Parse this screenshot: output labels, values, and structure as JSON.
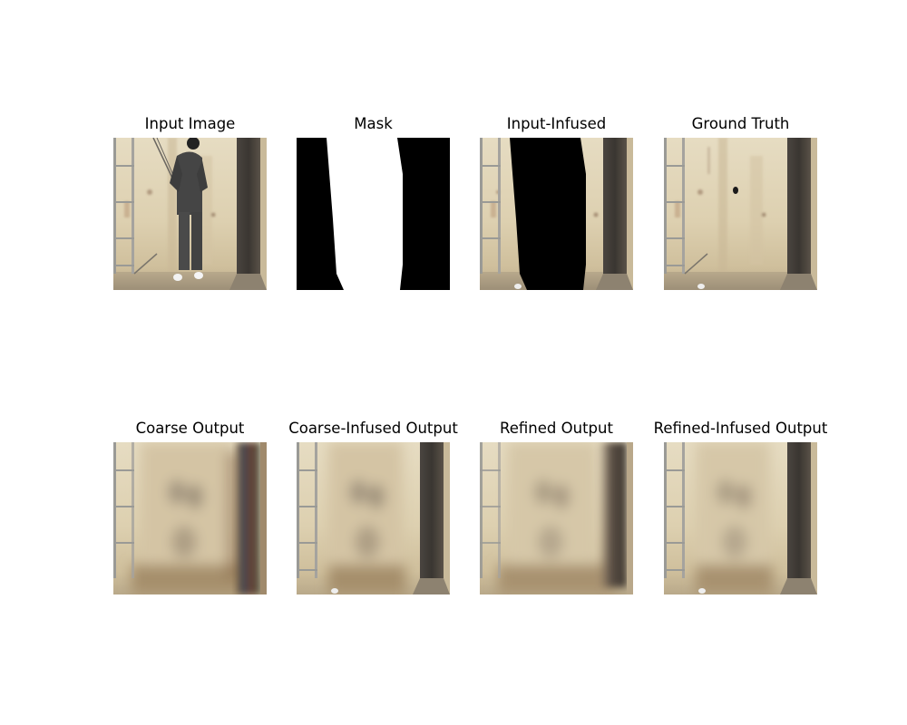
{
  "panels": [
    {
      "title": "Input Image",
      "kind": "input"
    },
    {
      "title": "Mask",
      "kind": "mask"
    },
    {
      "title": "Input-Infused",
      "kind": "infused"
    },
    {
      "title": "Ground Truth",
      "kind": "truth"
    },
    {
      "title": "Coarse Output",
      "kind": "coarse"
    },
    {
      "title": "Coarse-Infused Output",
      "kind": "coarse-infused"
    },
    {
      "title": "Refined Output",
      "kind": "refined"
    },
    {
      "title": "Refined-Infused Output",
      "kind": "refined-infused"
    }
  ]
}
